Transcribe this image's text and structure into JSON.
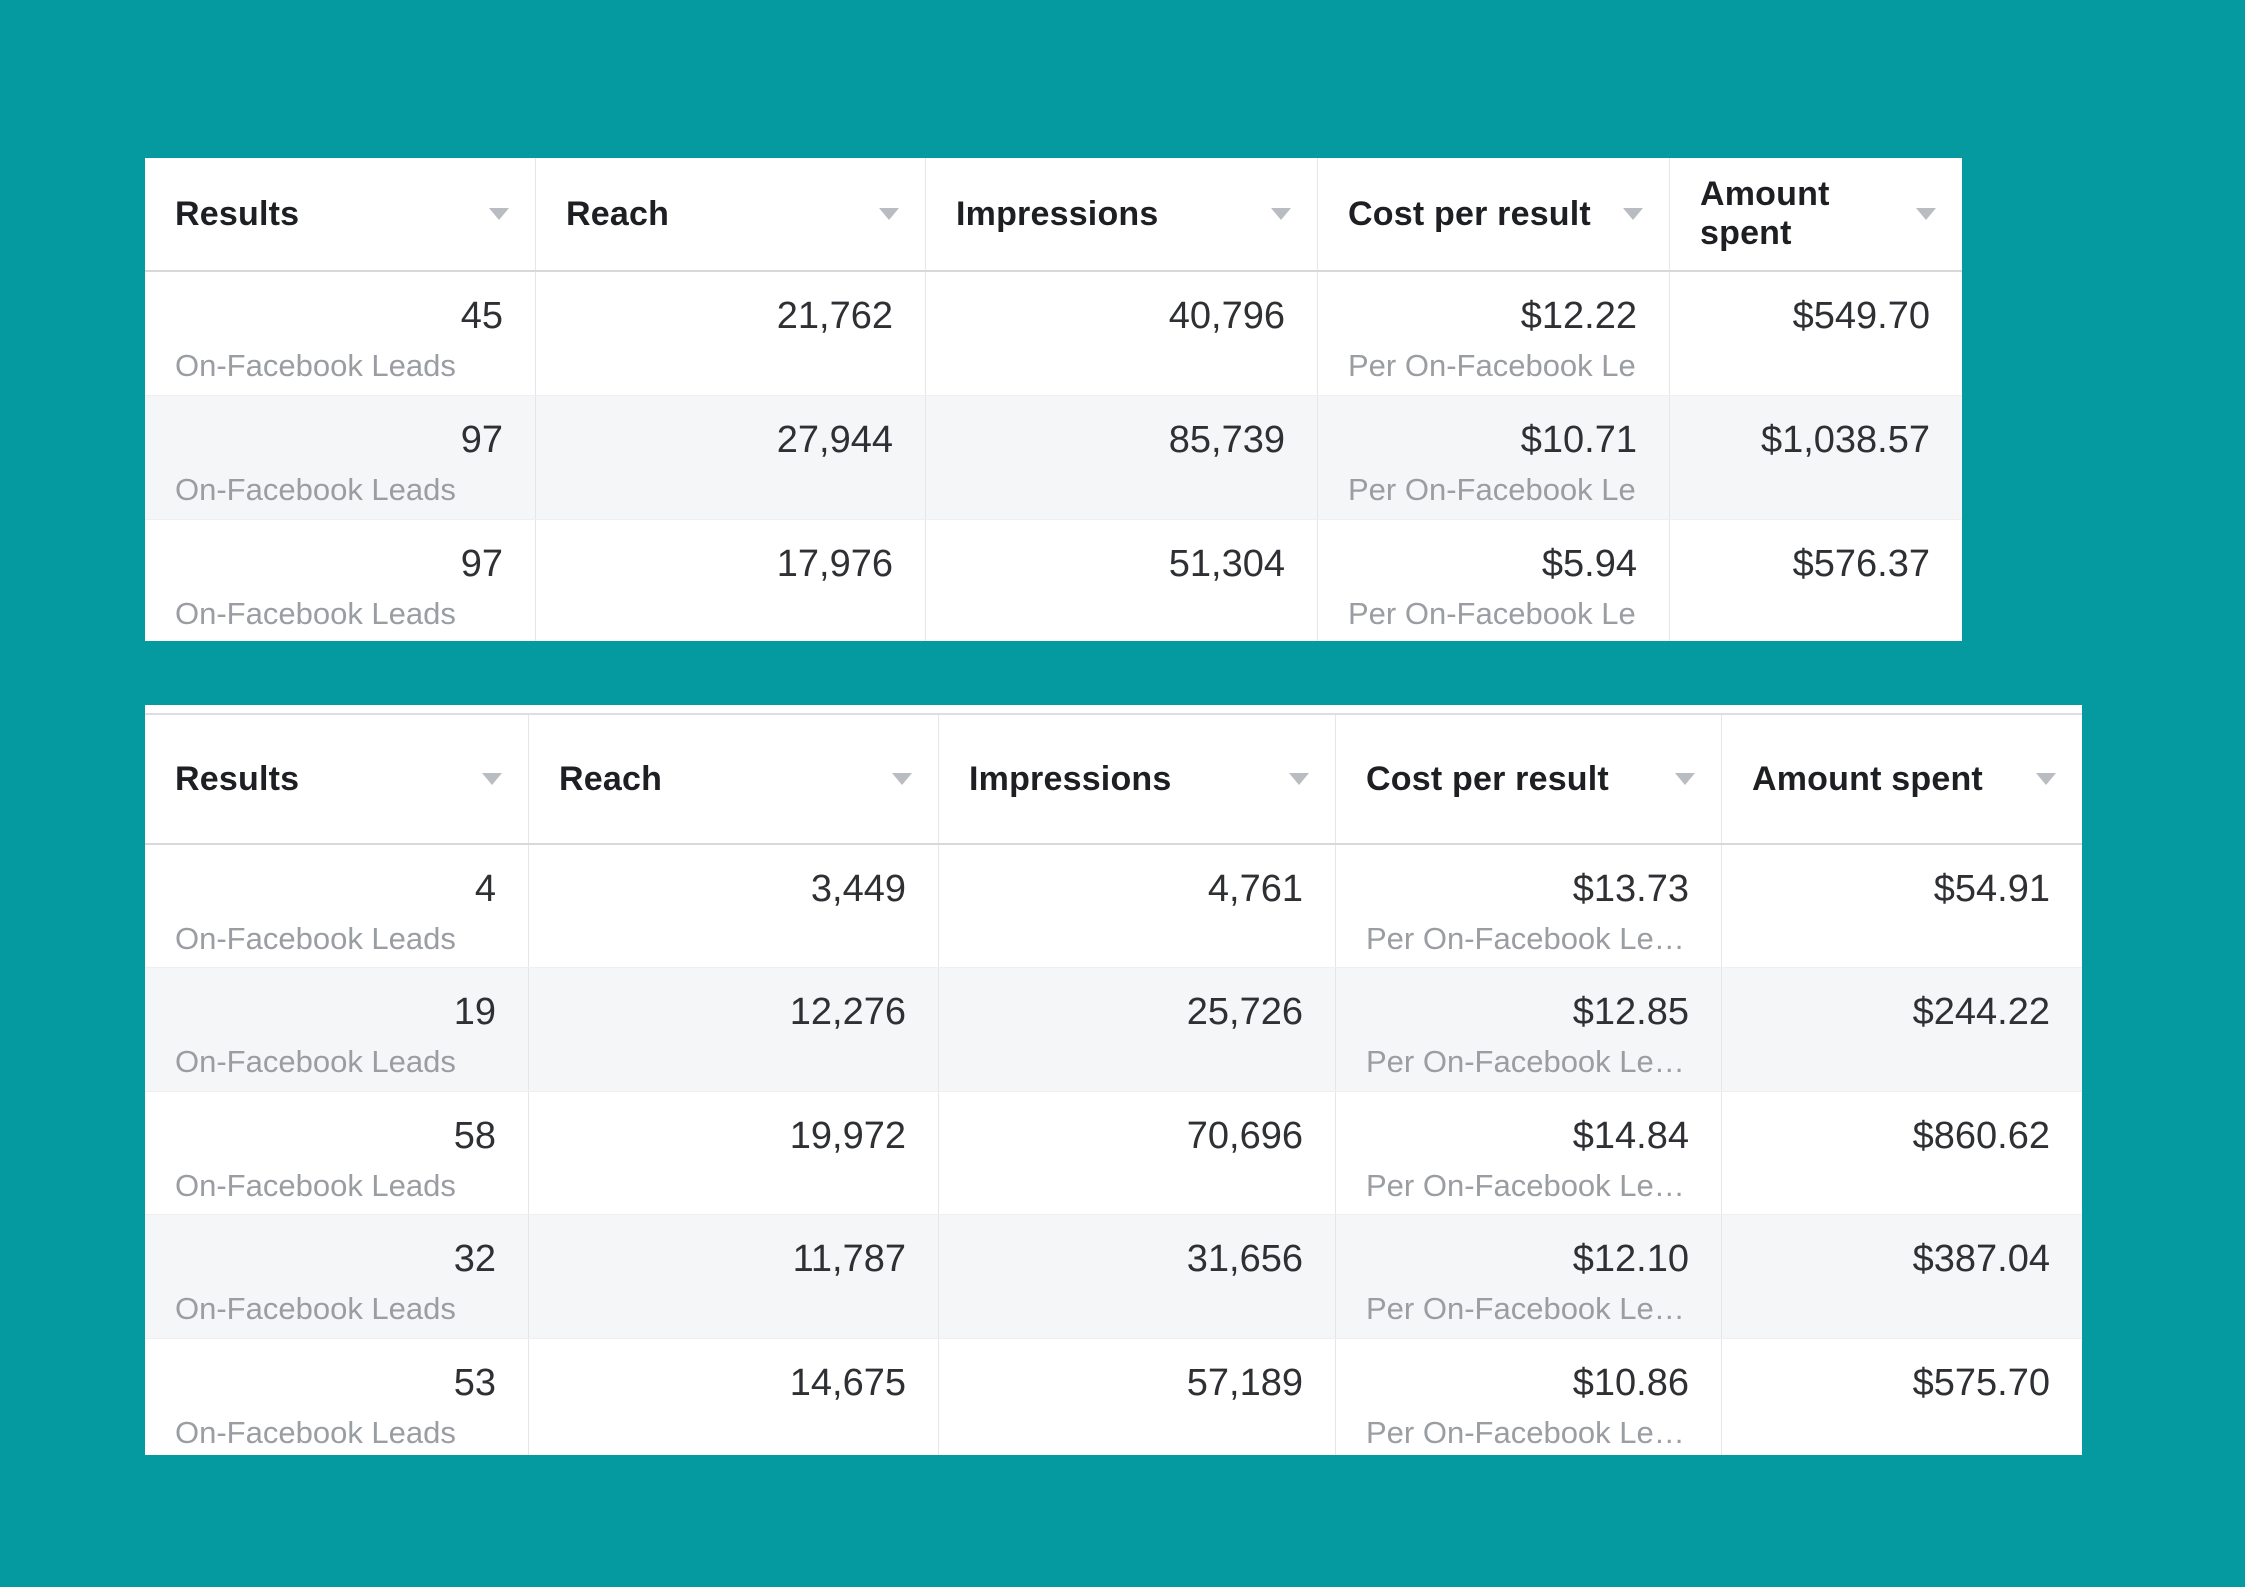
{
  "page": {
    "description": "Two ad performance metric tables on teal backdrop",
    "colors": {
      "background": "#0599A0",
      "table_bg": "#ffffff",
      "row_stripe": "#f5f6f7",
      "divider": "#e5e6e8",
      "header_text": "#1d1f23",
      "value_text": "#2e3033",
      "subtext": "#9a9da2",
      "sort_arrow": "#b9bcc1"
    }
  },
  "icons": {
    "sort": "sort-arrow-down-icon"
  },
  "table1": {
    "columns": [
      {
        "label": "Results"
      },
      {
        "label": "Reach"
      },
      {
        "label": "Impressions"
      },
      {
        "label": "Cost per result"
      },
      {
        "label": "Amount spent"
      }
    ],
    "rows": [
      {
        "results": "45",
        "results_sub": "On-Facebook Leads",
        "reach": "21,762",
        "impressions": "40,796",
        "cost": "$12.22",
        "cost_sub": "Per On-Facebook Le…",
        "amount": "$549.70"
      },
      {
        "results": "97",
        "results_sub": "On-Facebook Leads",
        "reach": "27,944",
        "impressions": "85,739",
        "cost": "$10.71",
        "cost_sub": "Per On-Facebook Le…",
        "amount": "$1,038.57"
      },
      {
        "results": "97",
        "results_sub": "On-Facebook Leads",
        "reach": "17,976",
        "impressions": "51,304",
        "cost": "$5.94",
        "cost_sub": "Per On-Facebook Le…",
        "amount": "$576.37"
      }
    ]
  },
  "table2": {
    "columns": [
      {
        "label": "Results"
      },
      {
        "label": "Reach"
      },
      {
        "label": "Impressions"
      },
      {
        "label": "Cost per result"
      },
      {
        "label": "Amount spent"
      }
    ],
    "rows": [
      {
        "results": "4",
        "results_sub": "On-Facebook Leads",
        "reach": "3,449",
        "impressions": "4,761",
        "cost": "$13.73",
        "cost_sub": "Per On-Facebook Le…",
        "amount": "$54.91"
      },
      {
        "results": "19",
        "results_sub": "On-Facebook Leads",
        "reach": "12,276",
        "impressions": "25,726",
        "cost": "$12.85",
        "cost_sub": "Per On-Facebook Le…",
        "amount": "$244.22"
      },
      {
        "results": "58",
        "results_sub": "On-Facebook Leads",
        "reach": "19,972",
        "impressions": "70,696",
        "cost": "$14.84",
        "cost_sub": "Per On-Facebook Le…",
        "amount": "$860.62"
      },
      {
        "results": "32",
        "results_sub": "On-Facebook Leads",
        "reach": "11,787",
        "impressions": "31,656",
        "cost": "$12.10",
        "cost_sub": "Per On-Facebook Le…",
        "amount": "$387.04"
      },
      {
        "results": "53",
        "results_sub": "On-Facebook Leads",
        "reach": "14,675",
        "impressions": "57,189",
        "cost": "$10.86",
        "cost_sub": "Per On-Facebook Le…",
        "amount": "$575.70"
      }
    ]
  }
}
